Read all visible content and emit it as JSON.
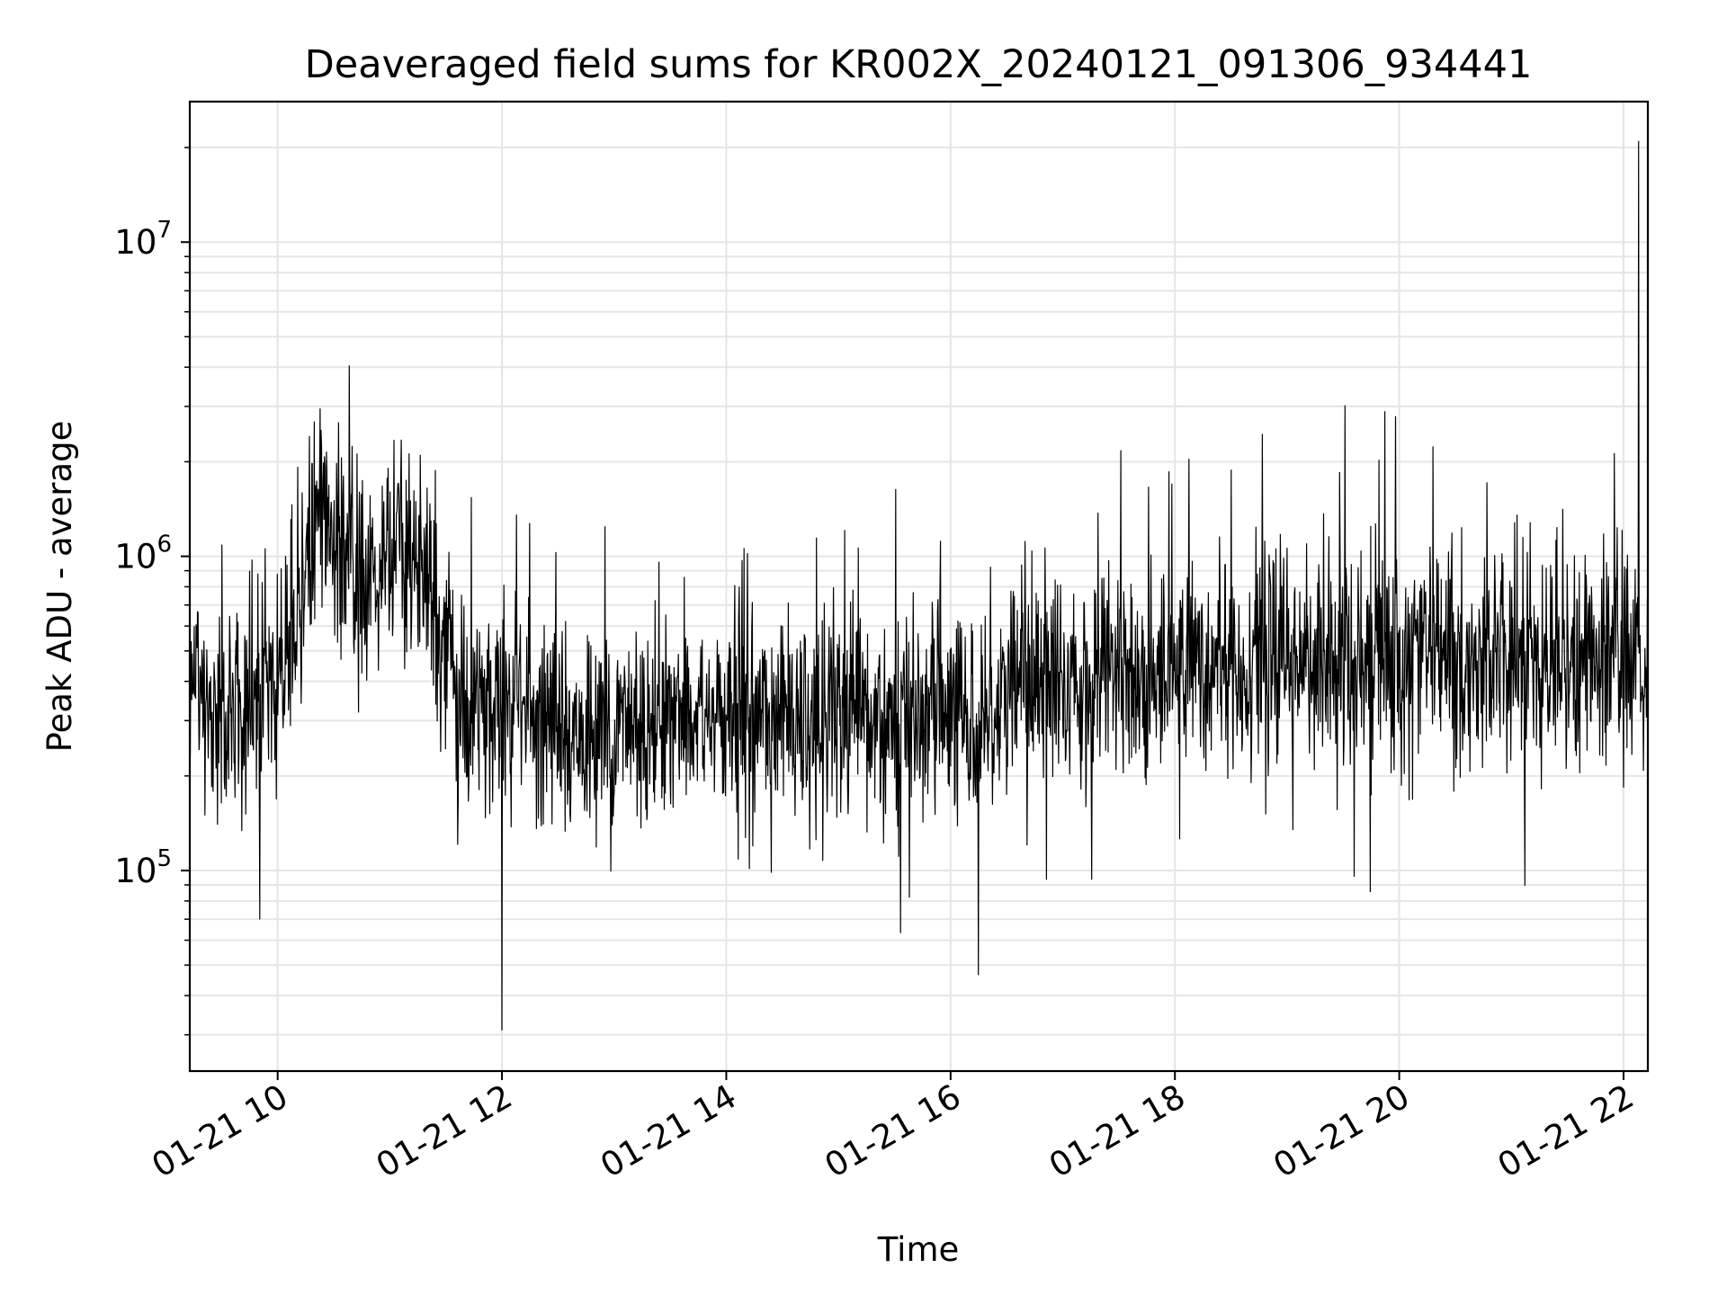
{
  "chart_data": {
    "type": "line",
    "title": "Deaveraged field sums for KR002X_20240121_091306_934441",
    "xlabel": "Time",
    "ylabel": "Peak ADU - average",
    "yscale": "log",
    "ylim": [
      23000,
      28000000
    ],
    "xlim": [
      "2024-01-21 09:13",
      "2024-01-21 22:13"
    ],
    "x_ticks": [
      "01-21 10",
      "01-21 12",
      "01-21 14",
      "01-21 16",
      "01-21 18",
      "01-21 20",
      "01-21 22"
    ],
    "y_ticks": [
      {
        "base": "10",
        "exp": "5",
        "value": 100000
      },
      {
        "base": "10",
        "exp": "6",
        "value": 1000000
      },
      {
        "base": "10",
        "exp": "7",
        "value": 10000000
      }
    ],
    "grid": true,
    "line_color": "#000000",
    "grid_color": "#e5e5e5",
    "series": [
      {
        "x": [
          "2024-01-21 09:13",
          "2024-01-21 09:20",
          "2024-01-21 09:30",
          "2024-01-21 09:40",
          "2024-01-21 09:50",
          "2024-01-21 10:00",
          "2024-01-21 10:10",
          "2024-01-21 10:20",
          "2024-01-21 10:30",
          "2024-01-21 10:40",
          "2024-01-21 10:50",
          "2024-01-21 11:00",
          "2024-01-21 11:10",
          "2024-01-21 11:20",
          "2024-01-21 11:30",
          "2024-01-21 11:40",
          "2024-01-21 11:50",
          "2024-01-21 12:00",
          "2024-01-21 12:15",
          "2024-01-21 12:30",
          "2024-01-21 12:45",
          "2024-01-21 13:00",
          "2024-01-21 13:15",
          "2024-01-21 13:30",
          "2024-01-21 13:45",
          "2024-01-21 14:00",
          "2024-01-21 14:15",
          "2024-01-21 14:30",
          "2024-01-21 14:45",
          "2024-01-21 15:00",
          "2024-01-21 15:15",
          "2024-01-21 15:30",
          "2024-01-21 15:45",
          "2024-01-21 16:00",
          "2024-01-21 16:15",
          "2024-01-21 16:30",
          "2024-01-21 16:45",
          "2024-01-21 17:00",
          "2024-01-21 17:15",
          "2024-01-21 17:30",
          "2024-01-21 17:45",
          "2024-01-21 18:00",
          "2024-01-21 18:15",
          "2024-01-21 18:30",
          "2024-01-21 18:45",
          "2024-01-21 19:00",
          "2024-01-21 19:15",
          "2024-01-21 19:30",
          "2024-01-21 19:45",
          "2024-01-21 20:00",
          "2024-01-21 20:15",
          "2024-01-21 20:30",
          "2024-01-21 20:45",
          "2024-01-21 21:00",
          "2024-01-21 21:15",
          "2024-01-21 21:30",
          "2024-01-21 21:45",
          "2024-01-21 22:00",
          "2024-01-21 22:10"
        ],
        "y": [
          400000,
          350000,
          300000,
          320000,
          380000,
          450000,
          600000,
          1500000,
          1200000,
          900000,
          800000,
          1200000,
          1000000,
          900000,
          500000,
          320000,
          330000,
          350000,
          330000,
          300000,
          250000,
          280000,
          300000,
          330000,
          300000,
          310000,
          300000,
          330000,
          280000,
          300000,
          290000,
          300000,
          320000,
          300000,
          310000,
          380000,
          400000,
          410000,
          390000,
          420000,
          410000,
          450000,
          470000,
          480000,
          460000,
          470000,
          450000,
          480000,
          470000,
          490000,
          500000,
          480000,
          470000,
          500000,
          480000,
          470000,
          490000,
          500000,
          450000
        ]
      }
    ],
    "annotations": {
      "max_spike": {
        "x": "2024-01-21 22:08",
        "y": 21000000
      },
      "min_spike": {
        "x": "2024-01-21 12:00",
        "y": 31000
      }
    }
  }
}
